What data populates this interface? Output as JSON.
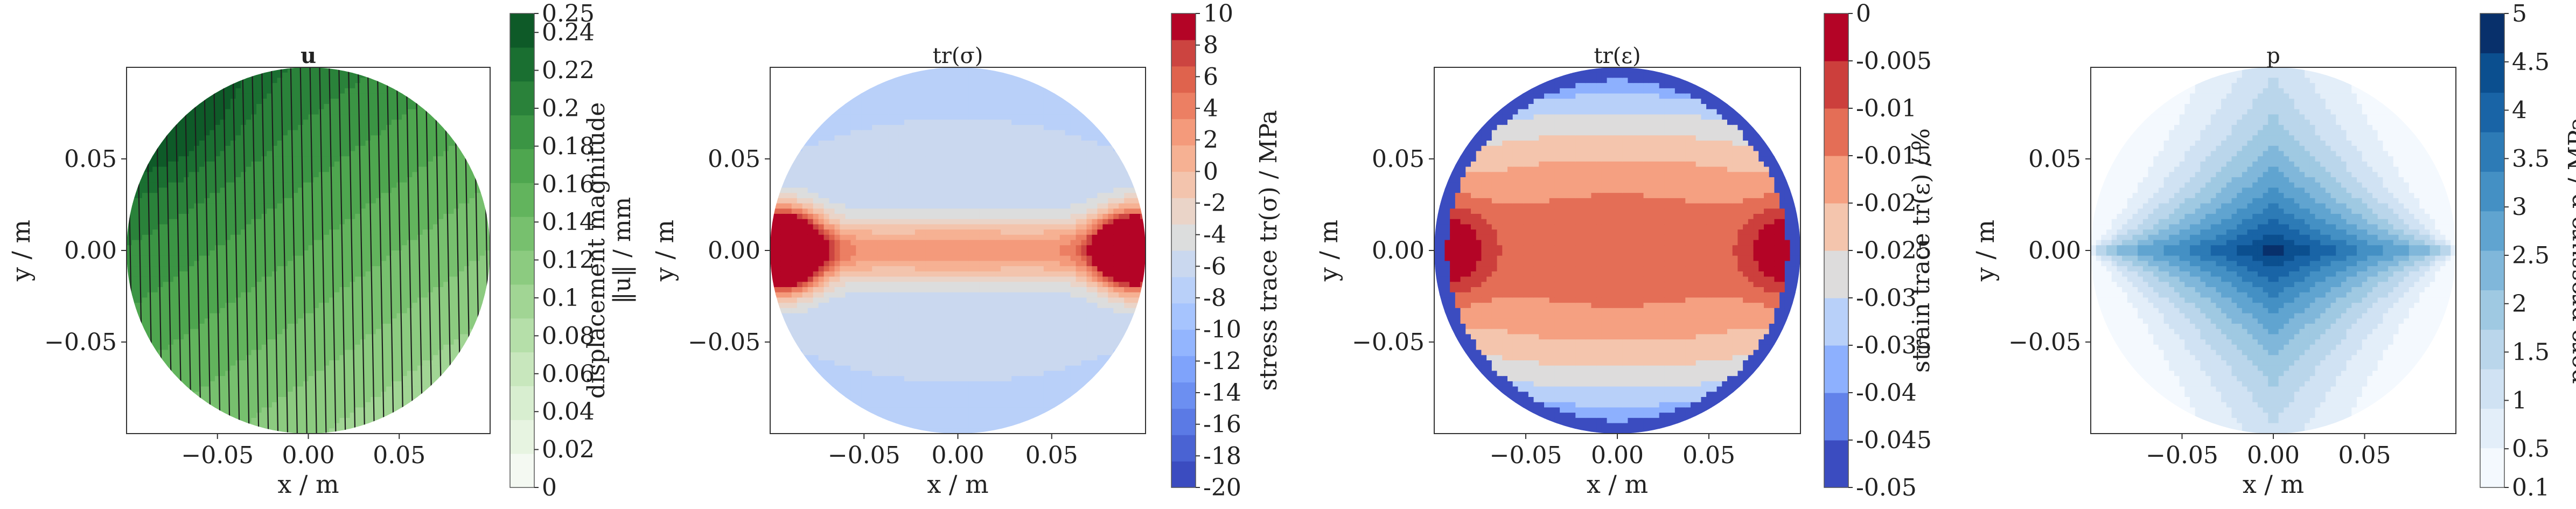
{
  "chart_data": [
    {
      "type": "contour",
      "title": "u",
      "xlabel": "x / m",
      "ylabel": "y / m",
      "xlim": [
        -0.1,
        0.1
      ],
      "ylim": [
        -0.1,
        0.1
      ],
      "xticks": [
        "−0.05",
        "0.00",
        "0.05"
      ],
      "yticks": [
        "0.05",
        "0.00",
        "−0.05"
      ],
      "xtick_values": [
        -0.05,
        0,
        0.05
      ],
      "ytick_values": [
        0.05,
        0,
        -0.05
      ],
      "domain_radius": 0.1,
      "colorbar": {
        "label": "displacement magnitude ‖u‖ / mm",
        "label_lines": [
          "displacement magnitude",
          "‖u‖ / mm"
        ],
        "ticks": [
          "0",
          "0.02",
          "0.04",
          "0.06",
          "0.08",
          "0.1",
          "0.12",
          "0.14",
          "0.16",
          "0.18",
          "0.2",
          "0.22",
          "0.24",
          "0.25"
        ],
        "tick_values": [
          0,
          0.02,
          0.04,
          0.06,
          0.08,
          0.1,
          0.12,
          0.14,
          0.16,
          0.18,
          0.2,
          0.22,
          0.24,
          0.25
        ],
        "range": [
          0,
          0.25
        ],
        "colors": [
          "#f4f9f2",
          "#e7f4e1",
          "#d8eed0",
          "#c8e7bd",
          "#b5dfa9",
          "#a1d594",
          "#8ccb80",
          "#77c06e",
          "#62b45d",
          "#4ea64f",
          "#3b9544",
          "#2a823a",
          "#1a6f31",
          "#0e5a28"
        ]
      },
      "field": {
        "description_values": "magnitude increases toward upper-left; quiver arrows mostly vertical",
        "corner_values": {
          "upper_left": 0.22,
          "upper_right": 0.16,
          "center": 0.14,
          "lower_left": 0.14,
          "lower_right": 0.07
        }
      }
    },
    {
      "type": "contour",
      "title": "tr(σ)",
      "xlabel": "x / m",
      "ylabel": "y / m",
      "xlim": [
        -0.1,
        0.1
      ],
      "ylim": [
        -0.1,
        0.1
      ],
      "xticks": [
        "−0.05",
        "0.00",
        "0.05"
      ],
      "yticks": [
        "0.05",
        "0.00",
        "−0.05"
      ],
      "xtick_values": [
        -0.05,
        0,
        0.05
      ],
      "ytick_values": [
        0.05,
        0,
        -0.05
      ],
      "colorbar": {
        "label": "stress trace tr(σ) / MPa",
        "ticks": [
          "10",
          "8",
          "6",
          "4",
          "2",
          "0",
          "-2",
          "-4",
          "-6",
          "-8",
          "-10",
          "-12",
          "-14",
          "-16",
          "-18",
          "-20"
        ],
        "tick_values": [
          10,
          8,
          6,
          4,
          2,
          0,
          -2,
          -4,
          -6,
          -8,
          -10,
          -12,
          -14,
          -16,
          -18,
          -20
        ],
        "range": [
          -20,
          10
        ],
        "colors": [
          "#3b4cc0",
          "#4a63d3",
          "#5b7ae5",
          "#6c8ff1",
          "#7fa3fb",
          "#93b5fe",
          "#a6c4fe",
          "#b9d0f9",
          "#cad8ef",
          "#dcdddd",
          "#ead4c8",
          "#f3c4ad",
          "#f6b193",
          "#f49a7b",
          "#ec7f63",
          "#df634d",
          "#cc4440",
          "#b40426"
        ]
      }
    },
    {
      "type": "contour",
      "title": "tr(ε)",
      "xlabel": "x / m",
      "ylabel": "y / m",
      "xlim": [
        -0.1,
        0.1
      ],
      "ylim": [
        -0.1,
        0.1
      ],
      "xticks": [
        "−0.05",
        "0.00",
        "0.05"
      ],
      "yticks": [
        "0.05",
        "0.00",
        "−0.05"
      ],
      "xtick_values": [
        -0.05,
        0,
        0.05
      ],
      "ytick_values": [
        0.05,
        0,
        -0.05
      ],
      "colorbar": {
        "label": "strain trace tr(ε) / %",
        "ticks": [
          "0",
          "-0.005",
          "-0.01",
          "-0.015",
          "-0.02",
          "-0.025",
          "-0.03",
          "-0.035",
          "-0.04",
          "-0.045",
          "-0.05"
        ],
        "tick_values": [
          0,
          -0.005,
          -0.01,
          -0.015,
          -0.02,
          -0.025,
          -0.03,
          -0.035,
          -0.04,
          -0.045,
          -0.05
        ],
        "range": [
          -0.05,
          0
        ],
        "colors": [
          "#3b4cc0",
          "#6282ea",
          "#8db0fe",
          "#b8d0f9",
          "#dddcdc",
          "#f4c5ad",
          "#f5a081",
          "#e46e56",
          "#cc3f3c",
          "#b40426"
        ]
      }
    },
    {
      "type": "contour",
      "title": "p",
      "xlabel": "x / m",
      "ylabel": "y / m",
      "xlim": [
        -0.1,
        0.1
      ],
      "ylim": [
        -0.1,
        0.1
      ],
      "xticks": [
        "−0.05",
        "0.00",
        "0.05"
      ],
      "yticks": [
        "0.05",
        "0.00",
        "−0.05"
      ],
      "xtick_values": [
        -0.05,
        0,
        0.05
      ],
      "ytick_values": [
        0.05,
        0,
        -0.05
      ],
      "colorbar": {
        "label": "pore pressure p / MPa",
        "ticks": [
          "5",
          "4.5",
          "4",
          "3.5",
          "3",
          "2.5",
          "2",
          "1.5",
          "1",
          "0.5",
          "0.1"
        ],
        "tick_values": [
          5,
          4.5,
          4,
          3.5,
          3,
          2.5,
          2,
          1.5,
          1,
          0.5,
          0.1
        ],
        "range": [
          0.1,
          5
        ],
        "colors": [
          "#f4f9fe",
          "#e3eef9",
          "#d0e2f3",
          "#bad6eb",
          "#9fc9e2",
          "#80b7da",
          "#60a4d0",
          "#4490c4",
          "#2d7bb6",
          "#1964a6",
          "#0b4f8f",
          "#08306b"
        ]
      }
    }
  ]
}
